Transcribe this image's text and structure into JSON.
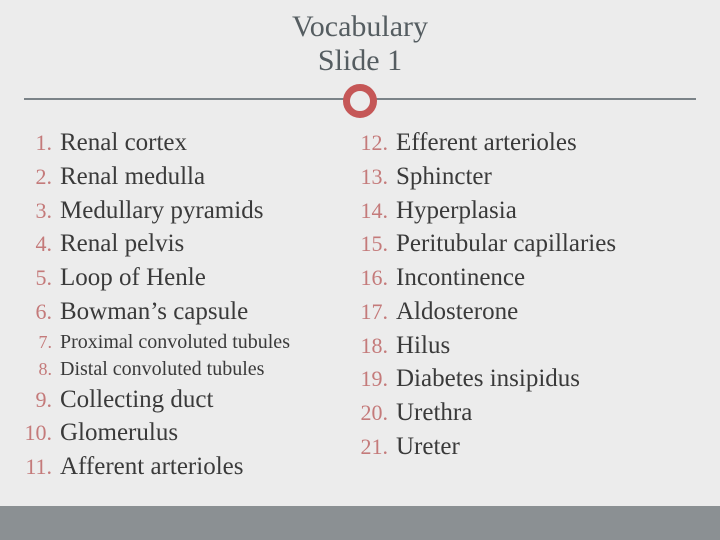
{
  "title": {
    "line1": "Vocabulary",
    "line2": "Slide 1"
  },
  "colors": {
    "background": "#ececec",
    "title_text": "#555d61",
    "divider_line": "#7b8388",
    "divider_circle": "#c55757",
    "number_color": "#c47a7a",
    "term_color": "#3a3a3a",
    "bottom_bar": "#8b9093"
  },
  "typography": {
    "family": "Georgia",
    "title_size": 30,
    "term_size": 25,
    "term_small_size": 20,
    "num_size": 22,
    "num_small_size": 18
  },
  "left_column": [
    {
      "n": "1.",
      "t": "Renal cortex",
      "small": false
    },
    {
      "n": "2.",
      "t": "Renal medulla",
      "small": false
    },
    {
      "n": "3.",
      "t": "Medullary pyramids",
      "small": false
    },
    {
      "n": "4.",
      "t": "Renal pelvis",
      "small": false
    },
    {
      "n": "5.",
      "t": "Loop of Henle",
      "small": false
    },
    {
      "n": "6.",
      "t": "Bowman’s capsule",
      "small": false
    },
    {
      "n": "7.",
      "t": "Proximal convoluted tubules",
      "small": true
    },
    {
      "n": "8.",
      "t": "Distal convoluted tubules",
      "small": true
    },
    {
      "n": "9.",
      "t": "Collecting duct",
      "small": false
    },
    {
      "n": "10.",
      "t": "Glomerulus",
      "small": false
    },
    {
      "n": "11.",
      "t": "Afferent arterioles",
      "small": false
    }
  ],
  "right_column": [
    {
      "n": "12.",
      "t": "Efferent arterioles",
      "small": false
    },
    {
      "n": "13.",
      "t": "Sphincter",
      "small": false
    },
    {
      "n": "14.",
      "t": "Hyperplasia",
      "small": false
    },
    {
      "n": "15.",
      "t": "Peritubular capillaries",
      "small": false
    },
    {
      "n": "16.",
      "t": "Incontinence",
      "small": false
    },
    {
      "n": "17.",
      "t": "Aldosterone",
      "small": false
    },
    {
      "n": "18.",
      "t": "Hilus",
      "small": false
    },
    {
      "n": "19.",
      "t": "Diabetes insipidus",
      "small": false
    },
    {
      "n": "20.",
      "t": "Urethra",
      "small": false
    },
    {
      "n": "21.",
      "t": "Ureter",
      "small": false
    }
  ]
}
